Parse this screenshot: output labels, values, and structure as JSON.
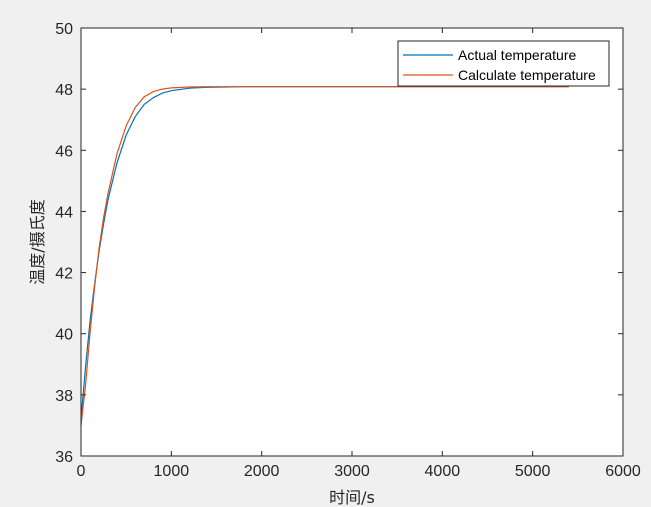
{
  "chart_data": {
    "type": "line",
    "xlabel": "时间/s",
    "ylabel": "温度/摄氏度",
    "xlim": [
      0,
      6000
    ],
    "ylim": [
      36,
      50
    ],
    "xticks": [
      0,
      1000,
      2000,
      3000,
      4000,
      5000,
      6000
    ],
    "yticks": [
      36,
      38,
      40,
      42,
      44,
      46,
      48,
      50
    ],
    "xtick_labels": [
      "0",
      "1000",
      "2000",
      "3000",
      "4000",
      "5000",
      "6000"
    ],
    "ytick_labels": [
      "36",
      "38",
      "40",
      "42",
      "44",
      "46",
      "48",
      "50"
    ],
    "grid": false,
    "legend_position": "top-right",
    "series": [
      {
        "name": "Actual temperature",
        "color": "#0072BD",
        "x": [
          0,
          50,
          100,
          150,
          200,
          250,
          300,
          400,
          500,
          600,
          700,
          800,
          900,
          1000,
          1200,
          1400,
          1600,
          1800,
          2000,
          2500,
          3000,
          3500,
          4000,
          4500,
          5000,
          5400
        ],
        "y": [
          37.2,
          38.9,
          40.4,
          41.6,
          42.7,
          43.6,
          44.4,
          45.6,
          46.5,
          47.1,
          47.5,
          47.72,
          47.87,
          47.95,
          48.03,
          48.06,
          48.07,
          48.08,
          48.08,
          48.08,
          48.08,
          48.08,
          48.08,
          48.08,
          48.08,
          48.08
        ]
      },
      {
        "name": "Calculate temperature",
        "color": "#D95319",
        "x": [
          0,
          50,
          100,
          150,
          200,
          250,
          300,
          400,
          500,
          600,
          700,
          800,
          900,
          1000,
          1200,
          1400,
          1600,
          1800,
          2000,
          2500,
          3000,
          3500,
          4000,
          4500,
          5000,
          5400
        ],
        "y": [
          37.0,
          38.3,
          40.0,
          41.5,
          42.8,
          43.8,
          44.6,
          45.9,
          46.8,
          47.4,
          47.75,
          47.92,
          48.0,
          48.04,
          48.07,
          48.08,
          48.08,
          48.08,
          48.08,
          48.08,
          48.08,
          48.08,
          48.08,
          48.08,
          48.08,
          48.08
        ]
      }
    ]
  }
}
